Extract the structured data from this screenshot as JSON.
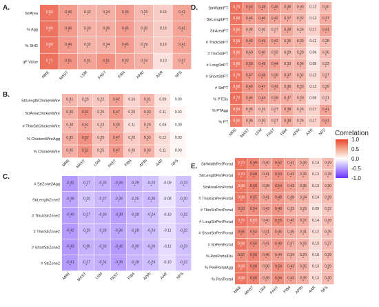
{
  "chart_data": [
    {
      "type": "heatmap",
      "panel_label": "A.",
      "columns": [
        "MRE",
        "MAST",
        "LSM",
        "FAST",
        "FIB4",
        "APRI",
        "AAR",
        "NFS"
      ],
      "rows": [
        "StrArea",
        "% Agg",
        "% SHG",
        "qF Value"
      ],
      "values": [
        [
          0.69,
          0.46,
          0.32,
          0.34,
          0.45,
          0.29,
          0.19,
          0.41
        ],
        [
          0.69,
          0.46,
          0.33,
          0.36,
          0.45,
          0.3,
          0.19,
          0.41
        ],
        [
          0.69,
          0.46,
          0.32,
          0.34,
          0.45,
          0.29,
          0.19,
          0.41
        ],
        [
          0.71,
          0.51,
          0.41,
          0.51,
          0.42,
          0.34,
          0.1,
          0.37
        ]
      ],
      "significant": [
        [
          1,
          1,
          1,
          1,
          1,
          1,
          0,
          1
        ],
        [
          1,
          1,
          1,
          1,
          1,
          1,
          0,
          1
        ],
        [
          1,
          1,
          1,
          1,
          1,
          1,
          0,
          1
        ],
        [
          1,
          1,
          1,
          1,
          1,
          1,
          0,
          1
        ]
      ]
    },
    {
      "type": "heatmap",
      "panel_label": "B.",
      "columns": [
        "MRE",
        "MAST",
        "LSM",
        "FAST",
        "FIB4",
        "APRI",
        "AAR",
        "NFS"
      ],
      "rows": [
        "StrLengthChickenWire",
        "StrAreaChickenWire",
        "# ThinStrChickenWire",
        "% ChickenWireAgg",
        "% ChickenWire"
      ],
      "values": [
        [
          0.31,
          0.25,
          0.22,
          0.42,
          0.16,
          0.31,
          0.09,
          -0.0
        ],
        [
          0.35,
          0.51,
          0.25,
          0.47,
          0.2,
          0.33,
          0.11,
          0.03
        ],
        [
          0.3,
          0.41,
          0.23,
          0.39,
          0.11,
          0.29,
          0.04,
          -0.0
        ],
        [
          0.35,
          0.52,
          0.25,
          0.47,
          0.2,
          0.33,
          0.12,
          0.03
        ],
        [
          0.35,
          0.51,
          0.25,
          0.47,
          0.2,
          0.33,
          0.11,
          0.03
        ]
      ],
      "significant": [
        [
          1,
          1,
          1,
          1,
          0,
          1,
          0,
          0
        ],
        [
          1,
          1,
          1,
          1,
          1,
          1,
          0,
          0
        ],
        [
          1,
          1,
          1,
          1,
          0,
          1,
          0,
          0
        ],
        [
          1,
          1,
          1,
          1,
          1,
          1,
          0,
          0
        ],
        [
          1,
          1,
          1,
          1,
          1,
          1,
          0,
          0
        ]
      ]
    },
    {
      "type": "heatmap",
      "panel_label": "C.",
      "columns": [
        "MRE",
        "MAST",
        "LSM",
        "FAST",
        "FIB4",
        "APRI",
        "AAR",
        "NFS"
      ],
      "rows": [
        "# StrZone2Agg",
        "StrLengthZone2",
        "# ThickStrZone2",
        "# ThinStrZone2",
        "# ShortStrZone2",
        "# StrZone2"
      ],
      "values": [
        [
          -0.42,
          -0.27,
          -0.3,
          -0.39,
          -0.29,
          -0.23,
          -0.09,
          -0.23
        ],
        [
          -0.36,
          -0.2,
          -0.27,
          -0.33,
          -0.25,
          -0.26,
          -0.08,
          -0.2
        ],
        [
          -0.4,
          -0.27,
          -0.3,
          -0.39,
          -0.28,
          -0.24,
          -0.1,
          -0.22
        ],
        [
          -0.42,
          -0.25,
          -0.28,
          -0.36,
          -0.28,
          -0.24,
          -0.11,
          -0.22
        ],
        [
          -0.43,
          -0.3,
          -0.32,
          -0.42,
          -0.3,
          -0.26,
          -0.11,
          -0.23
        ],
        [
          -0.41,
          -0.27,
          -0.31,
          -0.39,
          -0.28,
          -0.24,
          -0.1,
          -0.22
        ]
      ],
      "significant": [
        [
          1,
          1,
          1,
          1,
          1,
          1,
          0,
          1
        ],
        [
          1,
          1,
          1,
          1,
          1,
          1,
          0,
          1
        ],
        [
          1,
          1,
          1,
          1,
          1,
          1,
          0,
          1
        ],
        [
          1,
          1,
          1,
          1,
          1,
          1,
          0,
          1
        ],
        [
          1,
          1,
          1,
          1,
          1,
          1,
          0,
          1
        ],
        [
          1,
          1,
          1,
          1,
          1,
          1,
          0,
          1
        ]
      ]
    },
    {
      "type": "heatmap",
      "panel_label": "D.",
      "columns": [
        "MRE",
        "MAST",
        "LSM",
        "FAST",
        "FIB4",
        "APRI",
        "AAR",
        "NFS"
      ],
      "rows": [
        "StrWidthPT",
        "StrLengthPT",
        "StrAreaPT",
        "# ThickStrPT",
        "# ThinStrPT",
        "# LongStrPT",
        "# ShortStrPT",
        "# StrPT",
        "% PTDis",
        "% PTAgg",
        "% PT"
      ],
      "values": [
        [
          0.7,
          0.53,
          0.48,
          0.46,
          0.38,
          0.33,
          0.12,
          0.3
        ],
        [
          0.69,
          0.46,
          0.46,
          0.42,
          0.37,
          0.32,
          0.12,
          0.37
        ],
        [
          0.65,
          0.36,
          0.3,
          0.27,
          0.38,
          0.26,
          0.17,
          0.41
        ],
        [
          0.69,
          0.49,
          0.49,
          0.42,
          0.36,
          0.33,
          0.11,
          0.28
        ],
        [
          0.65,
          0.4,
          0.4,
          0.32,
          0.29,
          0.29,
          0.06,
          0.26
        ],
        [
          0.66,
          0.5,
          0.48,
          0.44,
          0.33,
          0.34,
          0.08,
          0.23
        ],
        [
          0.7,
          0.47,
          0.48,
          0.39,
          0.37,
          0.32,
          0.12,
          0.27
        ],
        [
          0.69,
          0.49,
          0.47,
          0.41,
          0.36,
          0.33,
          0.12,
          0.29
        ],
        [
          0.72,
          0.46,
          0.44,
          0.38,
          0.37,
          0.3,
          0.08,
          0.21
        ],
        [
          0.64,
          0.36,
          0.29,
          0.27,
          0.38,
          0.26,
          0.17,
          0.41
        ],
        [
          0.65,
          0.36,
          0.3,
          0.27,
          0.38,
          0.26,
          0.17,
          0.41
        ]
      ],
      "significant": [
        [
          1,
          1,
          1,
          1,
          1,
          1,
          0,
          1
        ],
        [
          1,
          1,
          1,
          1,
          1,
          1,
          0,
          1
        ],
        [
          1,
          1,
          1,
          1,
          1,
          1,
          0,
          1
        ],
        [
          1,
          1,
          1,
          1,
          1,
          1,
          0,
          1
        ],
        [
          1,
          1,
          1,
          1,
          1,
          1,
          0,
          1
        ],
        [
          1,
          1,
          1,
          1,
          1,
          1,
          0,
          1
        ],
        [
          1,
          1,
          1,
          1,
          1,
          1,
          0,
          1
        ],
        [
          1,
          1,
          1,
          1,
          1,
          1,
          0,
          1
        ],
        [
          1,
          1,
          1,
          1,
          1,
          1,
          0,
          1
        ],
        [
          1,
          1,
          1,
          1,
          1,
          1,
          0,
          1
        ],
        [
          1,
          1,
          1,
          1,
          1,
          1,
          0,
          1
        ]
      ]
    },
    {
      "type": "heatmap",
      "panel_label": "E.",
      "columns": [
        "MRE",
        "MAST",
        "LSM",
        "FAST",
        "FIB4",
        "APRI",
        "AAR",
        "NFS"
      ],
      "rows": [
        "StrWidthPeriPortal",
        "StrLengthPeriPortal",
        "StrAreaPeriPortal",
        "# ThickStrPeriPortal",
        "# ThinStrPeriPortal",
        "# LongStrPeriPortal",
        "# ShortStrPeriPortal",
        "# StrPeriPortal",
        "% PeriPortalDis",
        "% PeriPortalAgg",
        "% PeriPortal"
      ],
      "values": [
        [
          0.7,
          0.59,
          0.4,
          0.52,
          0.41,
          0.36,
          0.14,
          0.29
        ],
        [
          0.7,
          0.6,
          0.41,
          0.53,
          0.43,
          0.35,
          0.13,
          0.28
        ],
        [
          0.68,
          0.6,
          0.38,
          0.54,
          0.43,
          0.35,
          0.13,
          0.3
        ],
        [
          0.69,
          0.55,
          0.41,
          0.48,
          0.38,
          0.34,
          0.14,
          0.28
        ],
        [
          0.53,
          0.54,
          0.42,
          0.49,
          0.33,
          0.29,
          0.09,
          0.22
        ],
        [
          0.7,
          0.63,
          0.4,
          0.55,
          0.42,
          0.37,
          0.14,
          0.28
        ],
        [
          0.56,
          0.52,
          0.41,
          0.45,
          0.35,
          0.31,
          0.12,
          0.25
        ],
        [
          0.68,
          0.56,
          0.41,
          0.49,
          0.37,
          0.33,
          0.13,
          0.27
        ],
        [
          0.52,
          0.6,
          0.46,
          0.44,
          0.34,
          0.29,
          0.1,
          0.29
        ],
        [
          0.68,
          0.6,
          0.38,
          0.54,
          0.43,
          0.35,
          0.13,
          0.29
        ],
        [
          0.68,
          0.6,
          0.38,
          0.54,
          0.43,
          0.35,
          0.13,
          0.3
        ]
      ],
      "significant": [
        [
          1,
          1,
          1,
          1,
          1,
          1,
          0,
          1
        ],
        [
          1,
          1,
          1,
          1,
          1,
          1,
          0,
          1
        ],
        [
          1,
          1,
          1,
          1,
          1,
          1,
          0,
          1
        ],
        [
          1,
          1,
          1,
          1,
          1,
          1,
          0,
          1
        ],
        [
          1,
          1,
          1,
          1,
          1,
          1,
          0,
          1
        ],
        [
          1,
          1,
          1,
          1,
          1,
          1,
          0,
          1
        ],
        [
          1,
          1,
          1,
          1,
          1,
          1,
          0,
          1
        ],
        [
          1,
          1,
          1,
          1,
          1,
          1,
          0,
          1
        ],
        [
          1,
          1,
          1,
          1,
          1,
          1,
          0,
          1
        ],
        [
          1,
          1,
          1,
          1,
          1,
          1,
          0,
          1
        ],
        [
          1,
          1,
          1,
          1,
          1,
          1,
          0,
          1
        ]
      ]
    }
  ],
  "legend": {
    "title": "Correlation",
    "ticks": [
      "1.0",
      "0.5",
      "0.0",
      "-0.5",
      "-1.0"
    ],
    "colors": {
      "neg": "#6a32ff",
      "mid": "#ffffff",
      "pos": "#e8442a"
    }
  }
}
